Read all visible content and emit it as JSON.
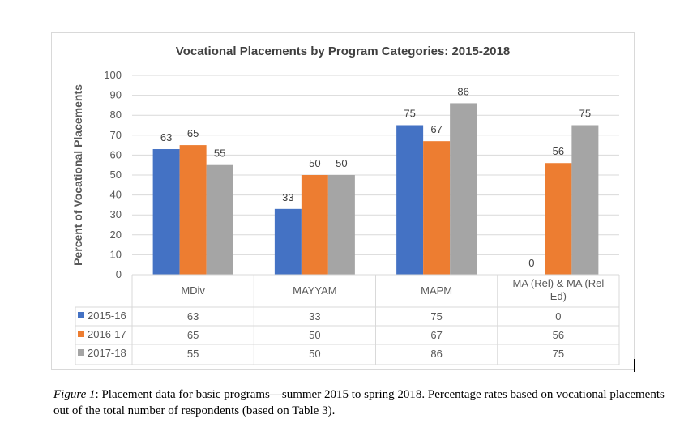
{
  "chart_data": {
    "type": "bar",
    "title": "Vocational Placements by Program Categories: 2015-2018",
    "ylabel": "Percent of Vocational Placements",
    "xlabel": "",
    "ylim": [
      0,
      100
    ],
    "yticks": [
      "0",
      "10",
      "20",
      "30",
      "40",
      "50",
      "60",
      "70",
      "80",
      "90",
      "100"
    ],
    "categories": [
      "MDiv",
      "MAYYAM",
      "MAPM",
      "MA (Rel) & MA (Rel Ed)"
    ],
    "series": [
      {
        "name": "2015-16",
        "color": "#4472c4",
        "values": [
          63,
          33,
          75,
          0
        ]
      },
      {
        "name": "2016-17",
        "color": "#ed7d31",
        "values": [
          65,
          50,
          67,
          56
        ]
      },
      {
        "name": "2017-18",
        "color": "#a5a5a5",
        "values": [
          55,
          50,
          86,
          75
        ]
      }
    ],
    "grid": true,
    "legend": "data-table"
  },
  "caption": {
    "lead": "Figure 1",
    "text": ": Placement data for basic programs—summer 2015 to spring 2018. Percentage rates based on vocational placements out of the total number of respondents (based on Table 3)."
  }
}
